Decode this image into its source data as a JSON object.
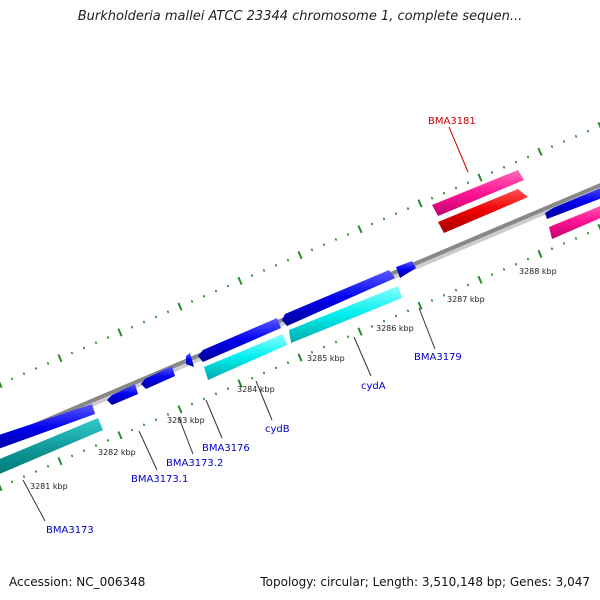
{
  "title": "Burkholderia mallei ATCC 23344 chromosome 1, complete sequen...",
  "footer": {
    "accession": "Accession: NC_006348",
    "topology": "Topology: circular; Length: 3,510,148 bp; Genes: 3,047"
  },
  "colors": {
    "backbone": "#888888",
    "tick_outer": "#2a8a2a",
    "forward_gene": "#0000ee",
    "forward_cds": "#00eeee",
    "reverse_gene": "#ff1493",
    "reverse_cds": "#ee0000",
    "label_blue": "#0000cc",
    "label_red": "#cc0000"
  },
  "scale_labels": [
    "3281 kbp",
    "3282 kbp",
    "3283 kbp",
    "3284 kbp",
    "3285 kbp",
    "3286 kbp",
    "3287 kbp",
    "3288 kbp"
  ],
  "gene_labels": [
    {
      "text": "BMA3181",
      "highlight": true
    },
    {
      "text": "BMA3179",
      "highlight": false
    },
    {
      "text": "cydA",
      "highlight": false
    },
    {
      "text": "cydB",
      "highlight": false
    },
    {
      "text": "BMA3176",
      "highlight": false
    },
    {
      "text": "BMA3173.2",
      "highlight": false
    },
    {
      "text": "BMA3173.1",
      "highlight": false
    },
    {
      "text": "BMA3173",
      "highlight": false
    }
  ]
}
